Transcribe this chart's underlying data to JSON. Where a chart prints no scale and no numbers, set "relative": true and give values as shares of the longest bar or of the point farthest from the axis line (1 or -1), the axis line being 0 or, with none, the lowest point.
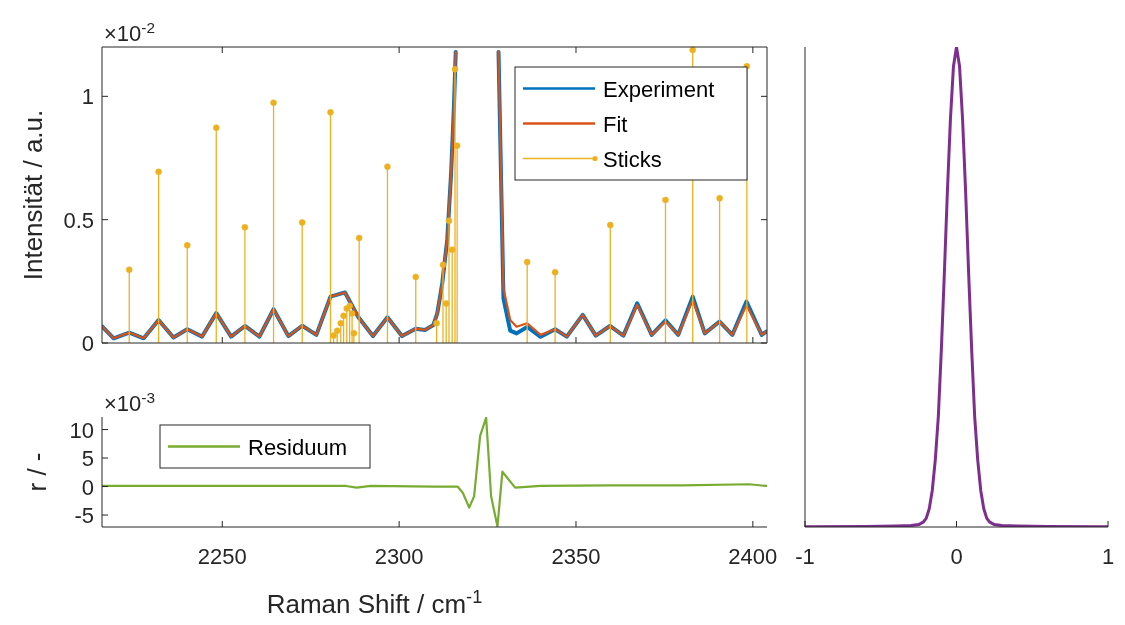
{
  "chart_data": [
    {
      "type": "line",
      "ylabel": "Intensität / a.u.",
      "annotations": [
        "×10$^{-2}$"
      ],
      "xlim": [
        2216,
        2404
      ],
      "xticks": [
        2250,
        2300,
        2350,
        2400
      ],
      "ylim": [
        0,
        1.2
      ],
      "yticks": [
        0,
        0.5,
        1
      ],
      "tick_labels": "y",
      "legend": "top right",
      "x": [
        2216.1,
        2219.3,
        2223.7,
        2227.8,
        2232.0,
        2236.2,
        2240.1,
        2244.3,
        2248.3,
        2252.5,
        2256.4,
        2260.5,
        2264.5,
        2268.7,
        2272.6,
        2276.6,
        2280.6,
        2284.7,
        2288.5,
        2292.6,
        2296.7,
        2300.8,
        2304.7,
        2307.3,
        2309.7,
        2310.8,
        2312.2,
        2313.6,
        2314.7,
        2315.5,
        2316.0,
        2322.0,
        2328.1,
        2329.5,
        2331.4,
        2333.2,
        2336.2,
        2340.0,
        2344.1,
        2347.4,
        2351.9,
        2355.6,
        2359.6,
        2363.4,
        2367.3,
        2371.4,
        2375.3,
        2378.9,
        2383.0,
        2386.4,
        2390.6,
        2394.2,
        2398.2,
        2402.5,
        2403.8
      ],
      "series": [
        {
          "name": "Experiment",
          "color": "#0072bd",
          "values": [
            0.066,
            0.019,
            0.042,
            0.019,
            0.093,
            0.022,
            0.056,
            0.026,
            0.121,
            0.026,
            0.069,
            0.026,
            0.137,
            0.028,
            0.07,
            0.033,
            0.188,
            0.205,
            0.104,
            0.028,
            0.104,
            0.028,
            0.058,
            0.053,
            0.073,
            0.121,
            0.243,
            0.419,
            0.69,
            0.96,
            1.18,
            null,
            1.18,
            0.18,
            0.05,
            0.039,
            0.065,
            0.025,
            0.056,
            0.026,
            0.114,
            0.03,
            0.069,
            0.03,
            0.161,
            0.033,
            0.092,
            0.033,
            0.188,
            0.039,
            0.087,
            0.033,
            0.168,
            0.033,
            0.046
          ]
        },
        {
          "name": "Fit",
          "color": "#d95319",
          "values": [
            0.066,
            0.019,
            0.042,
            0.019,
            0.093,
            0.022,
            0.056,
            0.026,
            0.121,
            0.026,
            0.069,
            0.026,
            0.137,
            0.028,
            0.07,
            0.033,
            0.188,
            0.205,
            0.104,
            0.028,
            0.104,
            0.028,
            0.058,
            0.053,
            0.073,
            0.121,
            0.243,
            0.419,
            0.69,
            0.96,
            1.18,
            null,
            1.18,
            0.222,
            0.093,
            0.066,
            0.08,
            0.033,
            0.056,
            0.026,
            0.114,
            0.03,
            0.069,
            0.03,
            0.154,
            0.033,
            0.087,
            0.033,
            0.175,
            0.039,
            0.087,
            0.033,
            0.154,
            0.033,
            0.046
          ]
        },
        {
          "name": "Sticks",
          "type": "lollipop",
          "color": "#edb120",
          "marker": "circle",
          "x": [
            2223.7,
            2232.0,
            2240.1,
            2248.3,
            2256.4,
            2264.5,
            2272.6,
            2280.6,
            2281.5,
            2282.5,
            2283.5,
            2284.3,
            2285.2,
            2286.0,
            2286.7,
            2287.2,
            2288.7,
            2296.7,
            2304.7,
            2310.6,
            2312.4,
            2313.3,
            2314.1,
            2315.0,
            2315.8,
            2316.4,
            2317.0,
            2317.5,
            2318.0,
            2318.5,
            2319.0,
            2319.5,
            2320.0,
            2320.5,
            2321.0,
            2321.5,
            2322.0,
            2322.5,
            2323.0,
            2323.5,
            2324.0,
            2324.5,
            2336.2,
            2344.1,
            2352.0,
            2359.7,
            2367.6,
            2375.3,
            2383.0,
            2390.6,
            2398.3
          ],
          "values": [
            0.297,
            0.694,
            0.396,
            0.873,
            0.469,
            0.974,
            0.489,
            0.935,
            0.03,
            0.05,
            0.08,
            0.11,
            0.14,
            0.15,
            0.12,
            0.04,
            0.426,
            0.715,
            0.268,
            0.08,
            0.317,
            0.16,
            0.496,
            0.378,
            1.11,
            0.8,
            null,
            null,
            null,
            null,
            null,
            null,
            null,
            null,
            null,
            null,
            null,
            null,
            null,
            null,
            null,
            null,
            0.328,
            0.287,
            null,
            0.478,
            null,
            0.58,
            1.188,
            0.587,
            1.122
          ]
        }
      ]
    },
    {
      "type": "line",
      "xlabel": "Raman Shift / cm$^{-1}$",
      "ylabel": "r / -",
      "annotations": [
        "×10$^{-3}$"
      ],
      "xlim": [
        2216,
        2404
      ],
      "xticks": [
        2250,
        2300,
        2350,
        2400
      ],
      "ylim": [
        -7.1,
        12.2
      ],
      "yticks": [
        -5,
        0,
        5,
        10
      ],
      "legend": "top left",
      "x": [
        2216.1,
        2230,
        2250,
        2270,
        2285,
        2288,
        2292,
        2310,
        2316.5,
        2318,
        2319.8,
        2321.2,
        2322.9,
        2324.6,
        2326,
        2327.8,
        2329.2,
        2332.8,
        2340,
        2360,
        2380,
        2399,
        2403.8
      ],
      "series": [
        {
          "name": "Residuum",
          "color": "#77ac30",
          "values": [
            0.1,
            0.1,
            0.1,
            0.1,
            0.1,
            -0.2,
            0.1,
            0,
            0,
            -1.1,
            -3.7,
            -1.7,
            8.9,
            12.1,
            -1.7,
            -7.0,
            2.6,
            -0.2,
            0.1,
            0.2,
            0.2,
            0.4,
            0.1
          ]
        }
      ]
    },
    {
      "type": "line",
      "relative": true,
      "xlim": [
        -1,
        1
      ],
      "xticks": [
        -1,
        0,
        1
      ],
      "x": [
        -1,
        -0.6,
        -0.4,
        -0.3,
        -0.25,
        -0.22,
        -0.2,
        -0.18,
        -0.16,
        -0.14,
        -0.12,
        -0.1,
        -0.08,
        -0.06,
        -0.04,
        -0.02,
        0,
        0.02,
        0.04,
        0.06,
        0.08,
        0.1,
        0.12,
        0.14,
        0.16,
        0.18,
        0.2,
        0.22,
        0.25,
        0.3,
        0.4,
        0.6,
        1
      ],
      "series": [
        {
          "color": "#7e2f8e",
          "values": [
            0.0005,
            0.001,
            0.002,
            0.003,
            0.005,
            0.01,
            0.018,
            0.038,
            0.076,
            0.14,
            0.23,
            0.37,
            0.53,
            0.7,
            0.85,
            0.96,
            1,
            0.96,
            0.85,
            0.7,
            0.53,
            0.37,
            0.23,
            0.14,
            0.076,
            0.038,
            0.018,
            0.01,
            0.005,
            0.003,
            0.002,
            0.001,
            0.0005
          ]
        }
      ]
    }
  ]
}
